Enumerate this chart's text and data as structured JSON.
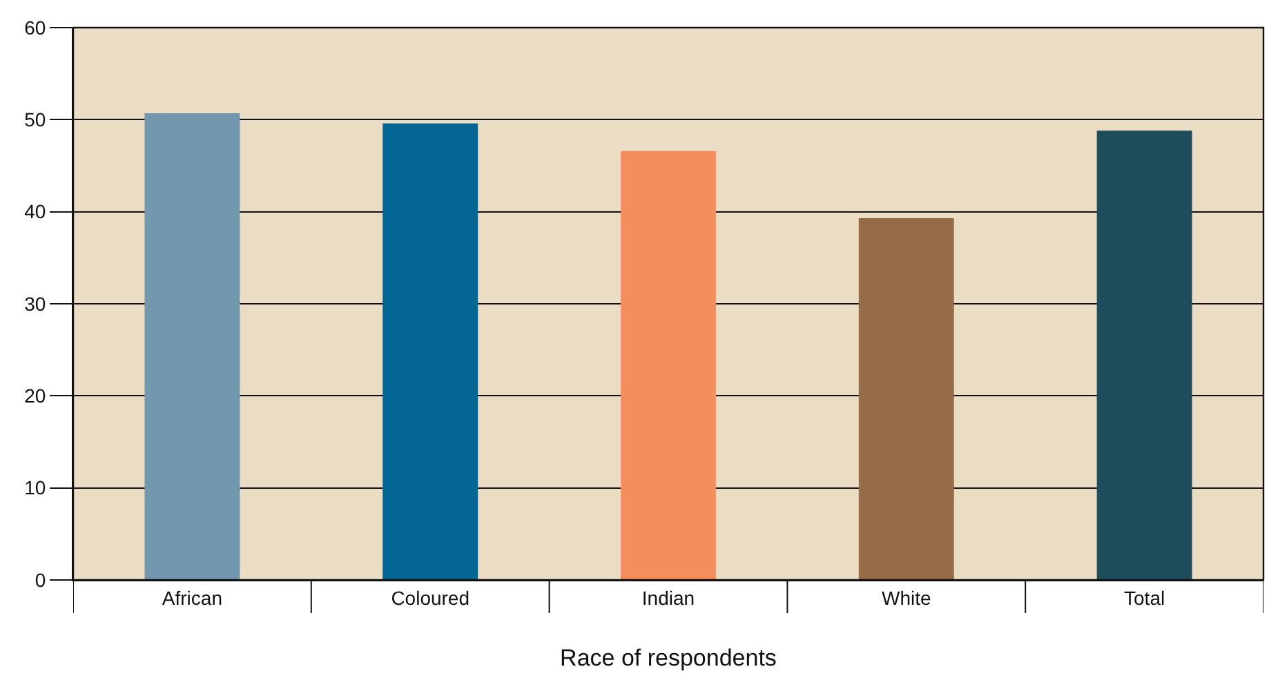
{
  "chart_data": {
    "type": "bar",
    "xlabel": "Race of respondents",
    "categories": [
      "African",
      "Coloured",
      "Indian",
      "White",
      "Total"
    ],
    "values": [
      50.7,
      49.6,
      46.6,
      39.3,
      48.8
    ],
    "colors": [
      "#7397ae",
      "#036694",
      "#f68d5c",
      "#966b48",
      "#1e4d5d"
    ],
    "ylim": [
      0,
      60
    ],
    "yticks": [
      0,
      10,
      20,
      30,
      40,
      50,
      60
    ],
    "grid": "y"
  }
}
